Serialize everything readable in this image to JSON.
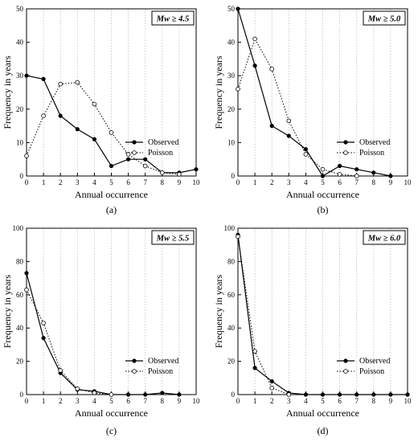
{
  "legend": {
    "observed": "Observed",
    "poisson": "Poisson"
  },
  "colors": {
    "axis": "#000000",
    "grid": "#bfbfbf",
    "line": "#000000",
    "marker_fill_poisson": "#ffffff"
  },
  "chart_data": [
    {
      "type": "line",
      "panel_label": "(a)",
      "badge": "Mw ≥ 4.5",
      "xlabel": "Annual occurrence",
      "ylabel": "Frequency in years",
      "xlim": [
        0,
        10
      ],
      "ylim": [
        0,
        50
      ],
      "x_ticks": [
        0,
        1,
        2,
        3,
        4,
        5,
        6,
        7,
        8,
        9,
        10
      ],
      "y_ticks": [
        0,
        10,
        20,
        30,
        40,
        50
      ],
      "grid": "dotted vertical",
      "legend_position": "bottom-right",
      "series": [
        {
          "name": "Observed",
          "style": "solid",
          "marker": "filled-circle",
          "x": [
            0,
            1,
            2,
            3,
            4,
            5,
            6,
            7,
            8,
            9,
            10
          ],
          "y": [
            30,
            29,
            18,
            14,
            11,
            3,
            5,
            5,
            1,
            1,
            2
          ]
        },
        {
          "name": "Poisson",
          "style": "dotted",
          "marker": "open-circle",
          "x": [
            0,
            1,
            2,
            3,
            4,
            5,
            6,
            7,
            8,
            9
          ],
          "y": [
            6,
            18,
            27.5,
            28,
            21.5,
            13,
            6.5,
            3,
            1,
            0.5
          ]
        }
      ]
    },
    {
      "type": "line",
      "panel_label": "(b)",
      "badge": "Mw ≥ 5.0",
      "xlabel": "Annual occurrence",
      "ylabel": "Frequency in years",
      "xlim": [
        0,
        10
      ],
      "ylim": [
        0,
        50
      ],
      "x_ticks": [
        0,
        1,
        2,
        3,
        4,
        5,
        6,
        7,
        8,
        9,
        10
      ],
      "y_ticks": [
        0,
        10,
        20,
        30,
        40,
        50
      ],
      "grid": "dotted vertical",
      "legend_position": "bottom-right",
      "series": [
        {
          "name": "Observed",
          "style": "solid",
          "marker": "filled-circle",
          "x": [
            0,
            1,
            2,
            3,
            4,
            5,
            6,
            7,
            8,
            9
          ],
          "y": [
            50,
            33,
            15,
            12,
            8,
            0,
            3,
            2,
            1,
            0
          ]
        },
        {
          "name": "Poisson",
          "style": "dotted",
          "marker": "open-circle",
          "x": [
            0,
            1,
            2,
            3,
            4,
            5,
            6,
            7
          ],
          "y": [
            26,
            41,
            32,
            16.5,
            6.5,
            2,
            0.5,
            0
          ]
        }
      ]
    },
    {
      "type": "line",
      "panel_label": "(c)",
      "badge": "Mw ≥ 5.5",
      "xlabel": "Annual occurrence",
      "ylabel": "Frequency in years",
      "xlim": [
        0,
        10
      ],
      "ylim": [
        0,
        100
      ],
      "x_ticks": [
        0,
        1,
        2,
        3,
        4,
        5,
        6,
        7,
        8,
        9,
        10
      ],
      "y_ticks": [
        0,
        20,
        40,
        60,
        80,
        100
      ],
      "grid": "dotted vertical",
      "legend_position": "bottom-right",
      "series": [
        {
          "name": "Observed",
          "style": "solid",
          "marker": "filled-circle",
          "x": [
            0,
            1,
            2,
            3,
            4,
            5,
            6,
            7,
            8,
            9
          ],
          "y": [
            73,
            34,
            13,
            3,
            2,
            0,
            0,
            0,
            1,
            0
          ]
        },
        {
          "name": "Poisson",
          "style": "dotted",
          "marker": "open-circle",
          "x": [
            0,
            1,
            2,
            3,
            4,
            5
          ],
          "y": [
            63,
            43,
            14.5,
            3.5,
            1,
            0
          ]
        }
      ]
    },
    {
      "type": "line",
      "panel_label": "(d)",
      "badge": "Mw ≥ 6.0",
      "xlabel": "Annual occurrence",
      "ylabel": "Frequency in years",
      "xlim": [
        0,
        10
      ],
      "ylim": [
        0,
        100
      ],
      "x_ticks": [
        0,
        1,
        2,
        3,
        4,
        5,
        6,
        7,
        8,
        9,
        10
      ],
      "y_ticks": [
        0,
        20,
        40,
        60,
        80,
        100
      ],
      "grid": "dotted vertical",
      "legend_position": "bottom-right",
      "series": [
        {
          "name": "Observed",
          "style": "solid",
          "marker": "filled-circle",
          "x": [
            0,
            1,
            2,
            3,
            4,
            5,
            6,
            7,
            8,
            9,
            10
          ],
          "y": [
            96,
            16,
            8,
            1,
            0,
            0,
            0,
            0,
            0,
            0,
            0
          ]
        },
        {
          "name": "Poisson",
          "style": "dotted",
          "marker": "open-circle",
          "x": [
            0,
            1,
            2,
            3
          ],
          "y": [
            95,
            26,
            4,
            0
          ]
        }
      ]
    }
  ]
}
